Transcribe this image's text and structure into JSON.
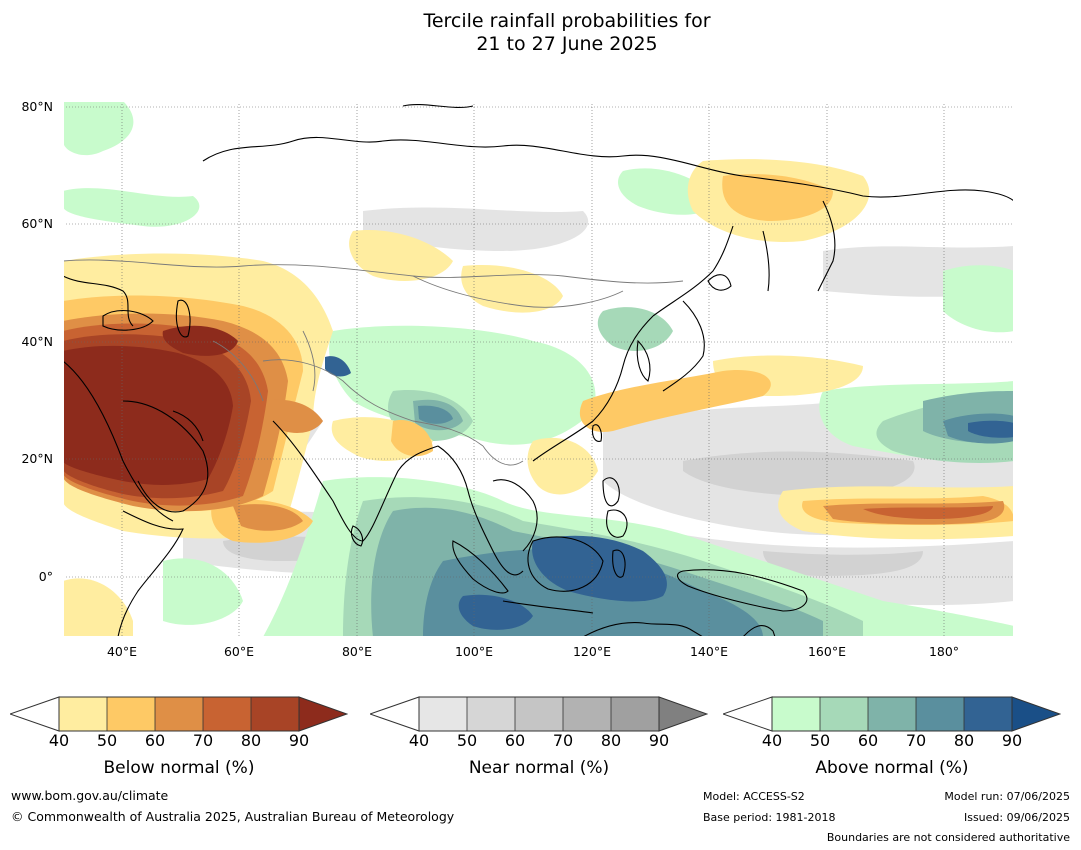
{
  "title": {
    "line1": "Tercile rainfall probabilities for",
    "line2": "21 to 27 June 2025"
  },
  "map": {
    "lat_labels": [
      "80°N",
      "60°N",
      "40°N",
      "20°N",
      "0°"
    ],
    "lon_labels": [
      "40°E",
      "60°E",
      "80°E",
      "100°E",
      "120°E",
      "140°E",
      "160°E",
      "180°"
    ],
    "extent": {
      "lon_min": 30,
      "lon_max": 192,
      "lat_min": -10,
      "lat_max": 81
    }
  },
  "colorbars": [
    {
      "id": "below",
      "title": "Below normal (%)",
      "ticks": [
        "40",
        "50",
        "60",
        "70",
        "80",
        "90"
      ],
      "colors": [
        "#ffeda0",
        "#fec965",
        "#df8f46",
        "#c86332",
        "#a84426",
        "#8d2b1c"
      ]
    },
    {
      "id": "near",
      "title": "Near normal (%)",
      "ticks": [
        "40",
        "50",
        "60",
        "70",
        "80",
        "90"
      ],
      "colors": [
        "#e6e6e6",
        "#d6d6d6",
        "#c5c5c5",
        "#b2b2b2",
        "#a0a0a0",
        "#808080"
      ]
    },
    {
      "id": "above",
      "title": "Above normal (%)",
      "ticks": [
        "40",
        "50",
        "60",
        "70",
        "80",
        "90"
      ],
      "colors": [
        "#c8fbcc",
        "#a6d9b8",
        "#7fb3a9",
        "#5a8f9e",
        "#326393",
        "#1a4f87"
      ]
    }
  ],
  "footer": {
    "website": "www.bom.gov.au/climate",
    "copyright": "© Commonwealth of Australia 2025, Australian Bureau of Meteorology",
    "model": "Model: ACCESS-S2",
    "base_period": "Base period: 1981-2018",
    "model_run": "Model run: 07/06/2025",
    "issued": "Issued: 09/06/2025",
    "disclaimer": "Boundaries are not considered authoritative"
  }
}
